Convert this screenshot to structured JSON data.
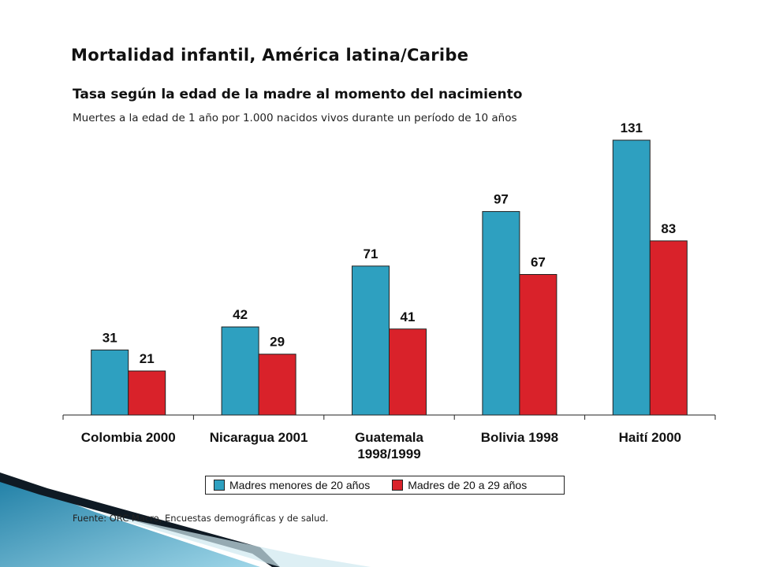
{
  "title": "Mortalidad infantil, América latina/Caribe",
  "subtitle": "Tasa según la edad de la madre al momento del nacimiento",
  "note": "Muertes a la edad de 1 año por 1.000 nacidos vivos durante un período de 10 años",
  "source": "Fuente: ORC Macro, Encuestas demográficas y de salud.",
  "colors": {
    "series1": "#2ea0c0",
    "series2": "#d9222a"
  },
  "chart_data": {
    "type": "bar",
    "categories": [
      "Colombia 2000",
      "Nicaragua 2001",
      "Guatemala 1998/1999",
      "Bolivia 1998",
      "Haití 2000"
    ],
    "category_lines": [
      [
        "Colombia 2000"
      ],
      [
        "Nicaragua 2001"
      ],
      [
        "Guatemala",
        "1998/1999"
      ],
      [
        "Bolivia 1998"
      ],
      [
        "Haití 2000"
      ]
    ],
    "series": [
      {
        "name": "Madres menores de 20 años",
        "values": [
          31,
          42,
          71,
          97,
          131
        ]
      },
      {
        "name": "Madres de 20 a 29 años",
        "values": [
          21,
          29,
          41,
          67,
          83
        ]
      }
    ],
    "ylim": [
      0,
      131
    ],
    "grid": false,
    "legend": "bottom"
  }
}
